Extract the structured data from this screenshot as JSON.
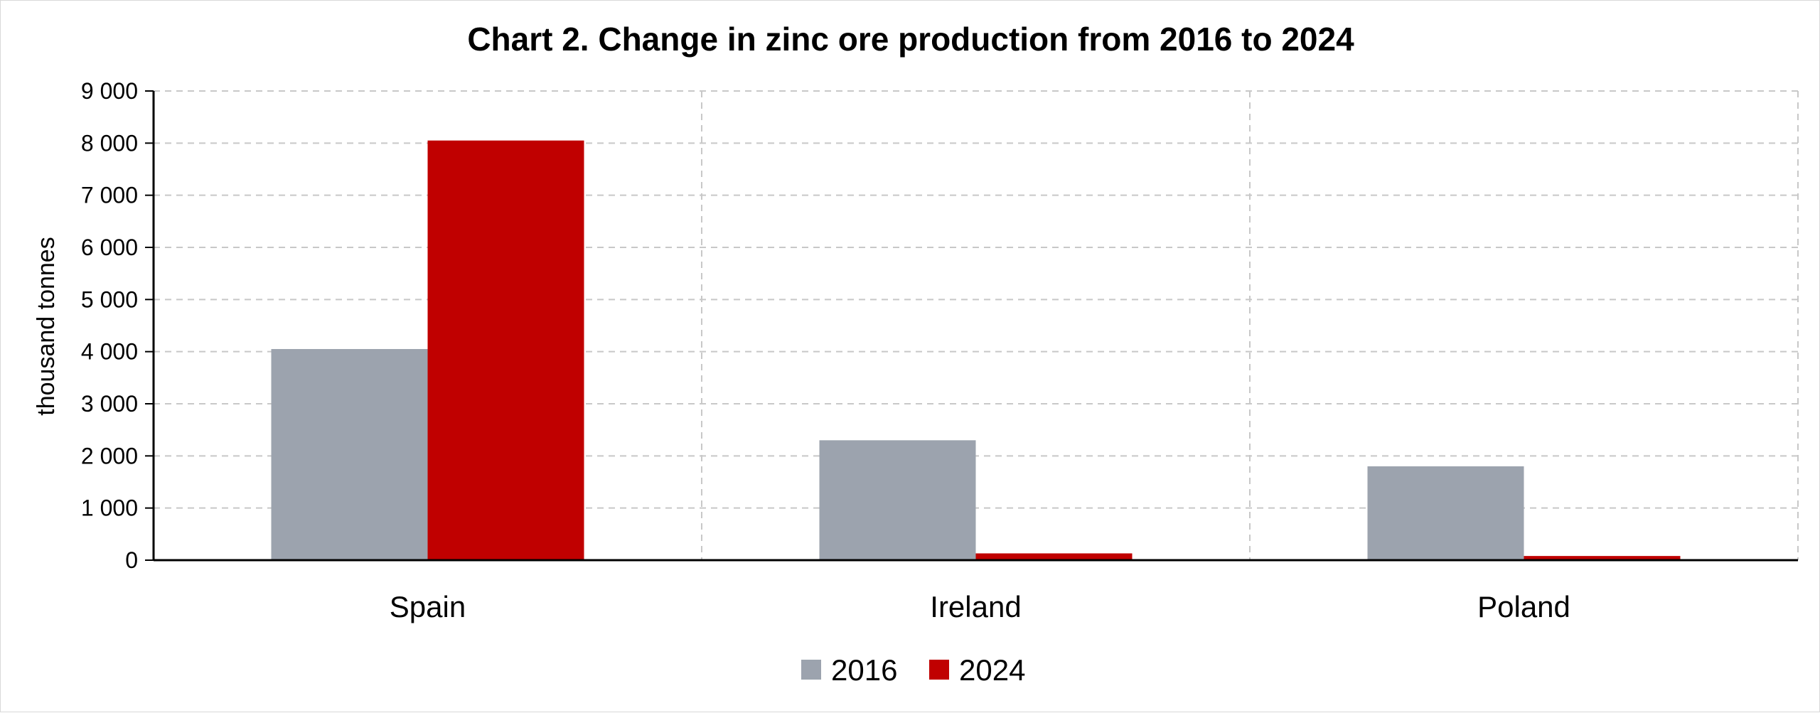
{
  "chart_data": {
    "type": "bar",
    "title": "Chart 2. Change in zinc ore production from 2016 to 2024",
    "ylabel": "thousand tonnes",
    "xlabel": "",
    "categories": [
      "Spain",
      "Ireland",
      "Poland"
    ],
    "series": [
      {
        "name": "2016",
        "values": [
          4050,
          2300,
          1800
        ],
        "color": "#9ca3ae"
      },
      {
        "name": "2024",
        "values": [
          8050,
          130,
          80
        ],
        "color": "#c00000"
      }
    ],
    "ylim": [
      0,
      9000
    ],
    "yticks": [
      0,
      1000,
      2000,
      3000,
      4000,
      5000,
      6000,
      7000,
      8000,
      9000
    ],
    "ytick_labels": [
      "0",
      "1 000",
      "2 000",
      "3 000",
      "4 000",
      "5 000",
      "6 000",
      "7 000",
      "8 000",
      "9 000"
    ],
    "grid": true,
    "legend_position": "bottom-center"
  }
}
